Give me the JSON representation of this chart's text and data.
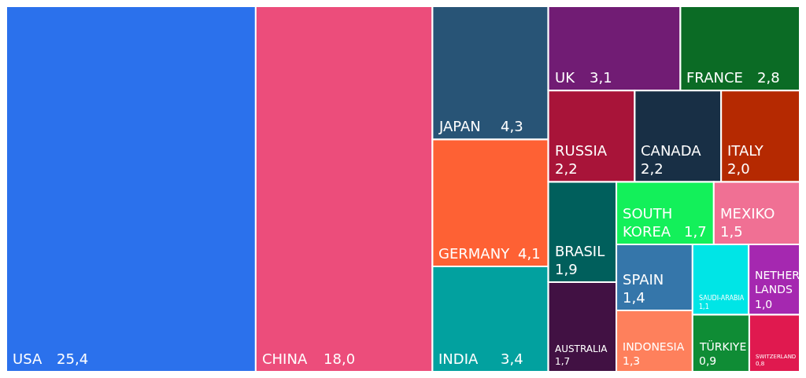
{
  "chart_data": {
    "type": "other",
    "categories": [
      "USA",
      "CHINA",
      "JAPAN",
      "GERMANY",
      "INDIA",
      "UK",
      "FRANCE",
      "RUSSIA",
      "CANADA",
      "ITALY",
      "BRASIL",
      "AUSTRALIA",
      "SOUTH KOREA",
      "MEXIKO",
      "SPAIN",
      "INDONESIA",
      "SAUDI-ARABIA",
      "NETHER LANDS",
      "TÜRKIYE",
      "SWITZERLAND"
    ],
    "values": [
      25.4,
      18.0,
      4.3,
      4.1,
      3.4,
      3.1,
      2.8,
      2.2,
      2.2,
      2.0,
      1.9,
      1.7,
      1.7,
      1.5,
      1.4,
      1.3,
      1.1,
      1.0,
      0.9,
      0.8
    ],
    "value_labels": [
      "25,4",
      "18,0",
      "4,3",
      "4,1",
      "3,4",
      "3,1",
      "2,8",
      "2,2",
      "2,2",
      "2,0",
      "1,9",
      "1,7",
      "1,7",
      "1,5",
      "1,4",
      "1,3",
      "1,1",
      "1,0",
      "0,9",
      "0,8"
    ],
    "colors": [
      "#2b71ec",
      "#ec4d7b",
      "#285476",
      "#fe6134",
      "#02a19f",
      "#711c74",
      "#0b6b25",
      "#a81439",
      "#182f45",
      "#b52901",
      "#005f5c",
      "#411143",
      "#13f05a",
      "#f07094",
      "#3576aa",
      "#fe805c",
      "#00e5e6",
      "#a528b0",
      "#0f8c35",
      "#e0194f"
    ]
  }
}
